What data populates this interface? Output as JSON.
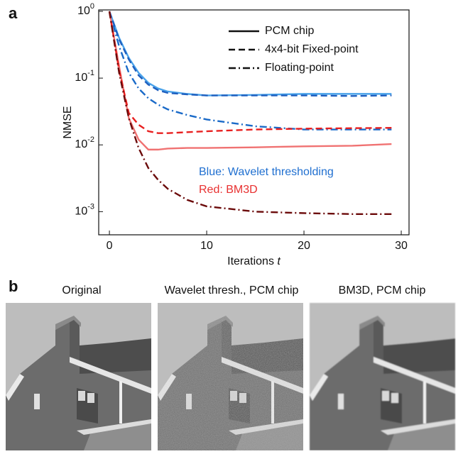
{
  "panel_a": "a",
  "panel_b": "b",
  "chart_data": {
    "type": "line",
    "ylabel": "NMSE",
    "xlabel": "Iterations",
    "xlabel_var": "t",
    "x": [
      0,
      1,
      2,
      3,
      4,
      5,
      6,
      8,
      10,
      15,
      20,
      25,
      29
    ],
    "xlim": [
      -1.1,
      30.8
    ],
    "xticks": [
      0,
      10,
      20,
      30
    ],
    "ylim": [
      0.00045,
      1.05
    ],
    "log_y": true,
    "yticks": [
      {
        "value": 1,
        "label": "10",
        "exponent": "0"
      },
      {
        "value": 0.1,
        "label": "10",
        "exponent": "-1"
      },
      {
        "value": 0.01,
        "label": "10",
        "exponent": "-2"
      },
      {
        "value": 0.001,
        "label": "10",
        "exponent": "-3"
      }
    ],
    "legend": [
      {
        "label": "PCM chip",
        "dash": "solid"
      },
      {
        "label": "4x4-bit Fixed-point",
        "dash": "dashed"
      },
      {
        "label": "Floating-point",
        "dash": "dashdot"
      }
    ],
    "annotations": [
      {
        "text": "Blue: Wavelet thresholding",
        "color": "#1f6fd0"
      },
      {
        "text": "Red: BM3D",
        "color": "#e83030"
      }
    ],
    "series": [
      {
        "color": "#4aa3ea",
        "dash": "solid",
        "values": [
          1,
          0.4,
          0.2,
          0.12,
          0.085,
          0.07,
          0.063,
          0.058,
          0.055,
          0.056,
          0.058,
          0.058,
          0.058
        ]
      },
      {
        "color": "#1f5fbf",
        "dash": "dashed",
        "values": [
          1,
          0.38,
          0.19,
          0.11,
          0.08,
          0.066,
          0.06,
          0.057,
          0.055,
          0.055,
          0.055,
          0.054,
          0.055
        ]
      },
      {
        "color": "#1a6ac8",
        "dash": "dashdot",
        "values": [
          1,
          0.3,
          0.12,
          0.07,
          0.05,
          0.04,
          0.034,
          0.028,
          0.024,
          0.019,
          0.017,
          0.017,
          0.017
        ]
      },
      {
        "color": "#f07272",
        "dash": "solid",
        "values": [
          1,
          0.15,
          0.025,
          0.012,
          0.0085,
          0.0085,
          0.0088,
          0.009,
          0.009,
          0.0092,
          0.0095,
          0.0097,
          0.0103
        ]
      },
      {
        "color": "#e82020",
        "dash": "dashed",
        "values": [
          1,
          0.13,
          0.03,
          0.02,
          0.016,
          0.015,
          0.015,
          0.0155,
          0.016,
          0.017,
          0.0175,
          0.0178,
          0.018
        ]
      },
      {
        "color": "#6b0a0a",
        "dash": "dashdot",
        "values": [
          1,
          0.12,
          0.025,
          0.009,
          0.0045,
          0.003,
          0.0022,
          0.0015,
          0.0012,
          0.001,
          0.00095,
          0.00092,
          0.00092
        ]
      }
    ]
  },
  "images": [
    {
      "title": "Original"
    },
    {
      "title": "Wavelet thresh., PCM chip"
    },
    {
      "title": "BM3D, PCM chip"
    }
  ]
}
